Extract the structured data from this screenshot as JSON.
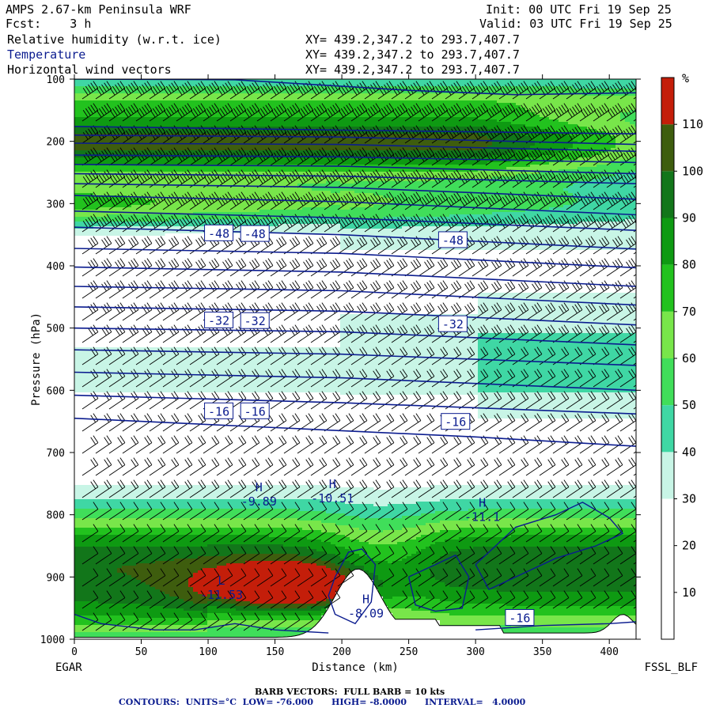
{
  "header": {
    "model": "AMPS 2.67-km Peninsula WRF",
    "forecast": "Fcst:    3 h",
    "init": "Init: 00 UTC Fri 19 Sep 25",
    "valid": "Valid: 03 UTC Fri 19 Sep 25",
    "fields": [
      {
        "name": "Relative humidity (w.r.t. ice)",
        "xy": "XY= 439.2,347.2 to 293.7,407.7"
      },
      {
        "name": "Temperature",
        "xy": "XY= 439.2,347.2 to 293.7,407.7"
      },
      {
        "name": "Horizontal wind vectors",
        "xy": "XY= 439.2,347.2 to 293.7,407.7"
      }
    ]
  },
  "colors": {
    "contour": "#0b1c8f",
    "bands": [
      "#ffffff",
      "#ffffff",
      "#ffffff",
      "#c8f5e6",
      "#3fd7a4",
      "#40de5a",
      "#78e64a",
      "#22c21e",
      "#0e9a12",
      "#12761a",
      "#3e5d0e",
      "#c41e0a"
    ]
  },
  "chart_data": {
    "type": "cross-section",
    "xlabel": "Distance (km)",
    "ylabel": "Pressure (hPa)",
    "x_ticks": [
      0,
      50,
      100,
      150,
      200,
      250,
      300,
      350,
      400
    ],
    "xlim": [
      0,
      420
    ],
    "y_ticks": [
      100,
      200,
      300,
      400,
      500,
      600,
      700,
      800,
      900,
      1000
    ],
    "ylim": [
      100,
      1000
    ],
    "left_label": "EGAR",
    "right_label": "FSSL_BLF",
    "colorbar": {
      "unit": "%",
      "ticks": [
        10,
        20,
        30,
        40,
        50,
        60,
        70,
        80,
        90,
        100,
        110
      ],
      "bounds": [
        0,
        10,
        20,
        30,
        40,
        50,
        60,
        70,
        80,
        90,
        100,
        110,
        120
      ]
    },
    "contour_labels": [
      {
        "text": "-48",
        "x": 108,
        "p": 347
      },
      {
        "text": "-48",
        "x": 135,
        "p": 348
      },
      {
        "text": "-48",
        "x": 283,
        "p": 358
      },
      {
        "text": "-32",
        "x": 108,
        "p": 487
      },
      {
        "text": "-32",
        "x": 135,
        "p": 488
      },
      {
        "text": "-32",
        "x": 283,
        "p": 493
      },
      {
        "text": "-16",
        "x": 108,
        "p": 633
      },
      {
        "text": "-16",
        "x": 135,
        "p": 633
      },
      {
        "text": "-16",
        "x": 285,
        "p": 650
      },
      {
        "text": "-16",
        "x": 333,
        "p": 965
      }
    ],
    "extrema": [
      {
        "type": "H",
        "value": "-9.89",
        "x": 138,
        "p": 775
      },
      {
        "type": "H",
        "value": "-10.51",
        "x": 193,
        "p": 770
      },
      {
        "type": "H",
        "value": "-11.1",
        "x": 305,
        "p": 800
      },
      {
        "type": "L",
        "value": "-11.53",
        "x": 110,
        "p": 925
      },
      {
        "type": "H",
        "value": "-8.09",
        "x": 218,
        "p": 955
      }
    ],
    "footer_barbs": "BARB VECTORS:  FULL BARB = 10 kts",
    "footer_contours": "CONTOURS:  UNITS=°C  LOW= -76.000      HIGH= -8.0000      INTERVAL=   4.0000"
  }
}
